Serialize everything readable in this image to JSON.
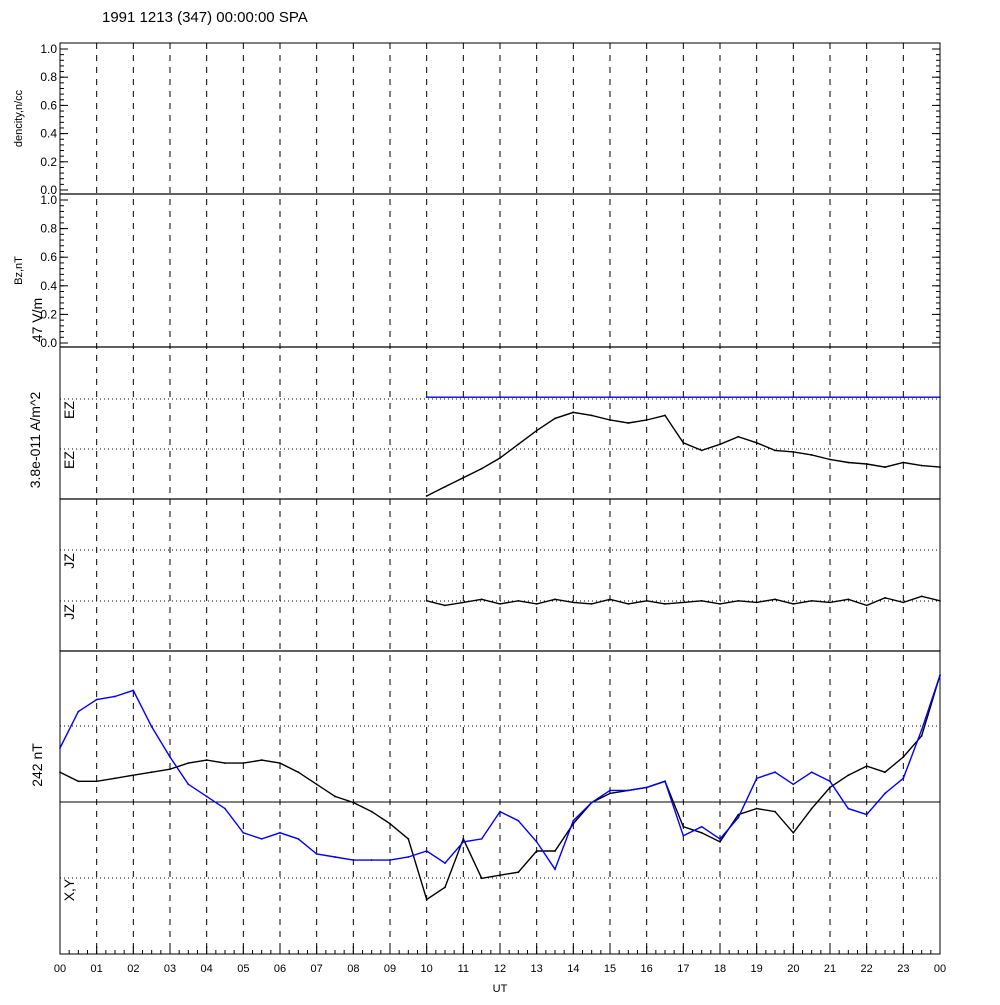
{
  "header": {
    "title": "1991 1213 (347) 00:00:00 SPA"
  },
  "chart_data": [
    {
      "type": "line",
      "panel": "density",
      "ylabel": "dencity,n/cc",
      "ylim": [
        0,
        1
      ],
      "yticks": [
        "0.0",
        "0.2",
        "0.4",
        "0.6",
        "0.8",
        "1.0"
      ],
      "series": []
    },
    {
      "type": "line",
      "panel": "bz",
      "ylabel": "Bz,nT",
      "ylim": [
        0,
        1
      ],
      "yticks": [
        "0.0",
        "0.2",
        "0.4",
        "0.6",
        "0.8",
        "1.0"
      ],
      "series": []
    },
    {
      "type": "line",
      "panel": "ez",
      "scale_label": "47 V/m",
      "trace_labels": [
        "EZ",
        "EZ"
      ],
      "ylim": [
        0,
        1
      ],
      "series": [
        {
          "color": "#0000ff",
          "x": [
            10.0,
            11.0,
            12.0,
            13.0,
            14.0,
            15.0,
            16.0,
            17.0,
            18.0,
            19.0,
            20.0,
            21.0,
            22.0,
            23.0,
            24.0
          ],
          "y": [
            0.67,
            0.67,
            0.67,
            0.67,
            0.67,
            0.67,
            0.67,
            0.67,
            0.67,
            0.67,
            0.67,
            0.67,
            0.67,
            0.67,
            0.67
          ]
        },
        {
          "color": "#000000",
          "x": [
            10.0,
            10.5,
            11.0,
            11.5,
            12.0,
            12.5,
            13.0,
            13.5,
            14.0,
            14.5,
            15.0,
            15.5,
            16.0,
            16.5,
            17.0,
            17.5,
            18.0,
            18.5,
            19.0,
            19.5,
            20.0,
            20.5,
            21.0,
            21.5,
            22.0,
            22.5,
            23.0,
            23.5,
            24.0
          ],
          "y": [
            0.02,
            0.08,
            0.14,
            0.2,
            0.27,
            0.36,
            0.45,
            0.53,
            0.57,
            0.55,
            0.52,
            0.5,
            0.52,
            0.55,
            0.37,
            0.32,
            0.36,
            0.41,
            0.37,
            0.32,
            0.31,
            0.29,
            0.26,
            0.24,
            0.23,
            0.21,
            0.24,
            0.22,
            0.21
          ]
        }
      ]
    },
    {
      "type": "line",
      "panel": "jz",
      "scale_label": "3.8e-011 A/m^2",
      "trace_labels": [
        "JZ",
        "JZ"
      ],
      "ylim": [
        0,
        1
      ],
      "series": [
        {
          "color": "#000000",
          "x": [
            10.0,
            10.5,
            11.0,
            11.5,
            12.0,
            12.5,
            13.0,
            13.5,
            14.0,
            14.5,
            15.0,
            15.5,
            16.0,
            16.5,
            17.0,
            17.5,
            18.0,
            18.5,
            19.0,
            19.5,
            20.0,
            20.5,
            21.0,
            21.5,
            22.0,
            22.5,
            23.0,
            23.5,
            24.0
          ],
          "y": [
            0.33,
            0.3,
            0.32,
            0.34,
            0.31,
            0.33,
            0.31,
            0.34,
            0.32,
            0.31,
            0.34,
            0.31,
            0.33,
            0.31,
            0.32,
            0.33,
            0.31,
            0.33,
            0.32,
            0.34,
            0.31,
            0.33,
            0.32,
            0.34,
            0.3,
            0.35,
            0.32,
            0.36,
            0.33
          ]
        }
      ]
    },
    {
      "type": "line",
      "panel": "xy",
      "scale_label": "242 nT",
      "trace_labels": [
        "X,Y"
      ],
      "ylim": [
        0,
        1
      ],
      "series": [
        {
          "color": "#000000",
          "x": [
            0.0,
            0.5,
            1.0,
            1.5,
            2.0,
            2.5,
            3.0,
            3.5,
            4.0,
            4.5,
            5.0,
            5.5,
            6.0,
            6.5,
            7.0,
            7.5,
            8.0,
            8.5,
            9.0,
            9.5,
            10.0,
            10.5,
            11.0,
            11.5,
            12.0,
            12.5,
            13.0,
            13.5,
            14.0,
            14.5,
            15.0,
            15.5,
            16.0,
            16.5,
            17.0,
            17.5,
            18.0,
            18.5,
            19.0,
            19.5,
            20.0,
            20.5,
            21.0,
            21.5,
            22.0,
            22.5,
            23.0,
            23.5,
            24.0
          ],
          "y": [
            0.6,
            0.57,
            0.57,
            0.58,
            0.59,
            0.6,
            0.61,
            0.63,
            0.64,
            0.63,
            0.63,
            0.64,
            0.63,
            0.6,
            0.56,
            0.52,
            0.5,
            0.47,
            0.43,
            0.38,
            0.18,
            0.22,
            0.38,
            0.25,
            0.26,
            0.27,
            0.34,
            0.34,
            0.43,
            0.5,
            0.53,
            0.54,
            0.55,
            0.57,
            0.42,
            0.4,
            0.37,
            0.46,
            0.48,
            0.47,
            0.4,
            0.48,
            0.55,
            0.59,
            0.62,
            0.6,
            0.65,
            0.72,
            0.92
          ]
        },
        {
          "color": "#0000ff",
          "x": [
            0.0,
            0.5,
            1.0,
            1.5,
            2.0,
            2.5,
            3.0,
            3.5,
            4.0,
            4.5,
            5.0,
            5.5,
            6.0,
            6.5,
            7.0,
            7.5,
            8.0,
            8.5,
            9.0,
            9.5,
            10.0,
            10.5,
            11.0,
            11.5,
            12.0,
            12.5,
            13.0,
            13.5,
            14.0,
            14.5,
            15.0,
            15.5,
            16.0,
            16.5,
            17.0,
            17.5,
            18.0,
            18.5,
            19.0,
            19.5,
            20.0,
            20.5,
            21.0,
            21.5,
            22.0,
            22.5,
            23.0,
            23.5,
            24.0
          ],
          "y": [
            0.68,
            0.8,
            0.84,
            0.85,
            0.87,
            0.75,
            0.65,
            0.56,
            0.52,
            0.48,
            0.4,
            0.38,
            0.4,
            0.38,
            0.33,
            0.32,
            0.31,
            0.31,
            0.31,
            0.32,
            0.34,
            0.3,
            0.37,
            0.38,
            0.47,
            0.44,
            0.37,
            0.28,
            0.44,
            0.5,
            0.54,
            0.54,
            0.55,
            0.57,
            0.39,
            0.42,
            0.38,
            0.45,
            0.58,
            0.6,
            0.56,
            0.6,
            0.57,
            0.48,
            0.46,
            0.53,
            0.58,
            0.74,
            0.92
          ]
        }
      ]
    }
  ],
  "x_axis": {
    "label": "UT",
    "range": [
      0,
      24
    ],
    "ticks": [
      "00",
      "01",
      "02",
      "03",
      "04",
      "05",
      "06",
      "07",
      "08",
      "09",
      "10",
      "11",
      "12",
      "13",
      "14",
      "15",
      "16",
      "17",
      "18",
      "19",
      "20",
      "21",
      "22",
      "23",
      "00"
    ]
  },
  "colors": {
    "axis": "#000000",
    "blue": "#0000ff",
    "background": "#ffffff"
  }
}
